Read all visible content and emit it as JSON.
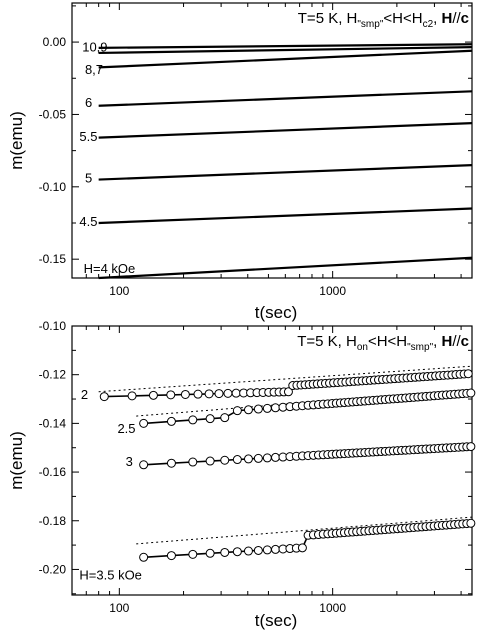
{
  "chart_data": [
    {
      "type": "line",
      "title": "",
      "xlabel": "t(sec)",
      "ylabel": "m(emu)",
      "xscale": "log",
      "xlim": [
        60,
        4500
      ],
      "ylim": [
        -0.163,
        0.027
      ],
      "xticks": [
        {
          "v": 100,
          "label": "100"
        },
        {
          "v": 1000,
          "label": "1000"
        }
      ],
      "yticks": [
        {
          "v": 0.0,
          "label": "0.00"
        },
        {
          "v": -0.05,
          "label": "-0.05"
        },
        {
          "v": -0.1,
          "label": "-0.10"
        },
        {
          "v": -0.15,
          "label": "-0.15"
        }
      ],
      "annotation": {
        "pre": "T=5 K,  H",
        "sub1": "\"smp\"",
        "mid": "<H<H",
        "sub2": "c2",
        "comma": ",",
        "bold": "H",
        "slash": "//",
        "boldc": "c"
      },
      "series": [
        {
          "name": "10,9",
          "x": [
            80,
            4500
          ],
          "y": [
            -0.004,
            -0.0015
          ]
        },
        {
          "name": "10,9",
          "x": [
            80,
            4500
          ],
          "y": [
            -0.0075,
            -0.0035
          ]
        },
        {
          "name": "8,7",
          "x": [
            80,
            4500
          ],
          "y": [
            -0.0175,
            -0.006
          ]
        },
        {
          "name": "6",
          "x": [
            80,
            4500
          ],
          "y": [
            -0.044,
            -0.034
          ]
        },
        {
          "name": "5.5",
          "x": [
            80,
            4500
          ],
          "y": [
            -0.066,
            -0.056
          ]
        },
        {
          "name": "5",
          "x": [
            80,
            4500
          ],
          "y": [
            -0.095,
            -0.085
          ]
        },
        {
          "name": "4.5",
          "x": [
            80,
            4500
          ],
          "y": [
            -0.125,
            -0.115
          ]
        },
        {
          "name": "H=4 kOe",
          "x": [
            80,
            4500
          ],
          "y": [
            -0.163,
            -0.149
          ]
        }
      ],
      "labels": [
        {
          "text": "10,9",
          "x": 67,
          "y": -0.003
        },
        {
          "text": "8,7",
          "x": 69,
          "y": -0.0185
        },
        {
          "text": "6",
          "x": 69,
          "y": -0.0415
        },
        {
          "text": "5.5",
          "x": 65,
          "y": -0.065
        },
        {
          "text": "5",
          "x": 69,
          "y": -0.0935
        },
        {
          "text": "4.5",
          "x": 65,
          "y": -0.1235
        },
        {
          "text": "H=4 kOe",
          "x": 68,
          "y": -0.156
        }
      ]
    },
    {
      "type": "scatter",
      "title": "",
      "xlabel": "t(sec)",
      "ylabel": "m(emu)",
      "xscale": "log",
      "xlim": [
        60,
        4500
      ],
      "ylim": [
        -0.2105,
        -0.1
      ],
      "xticks": [
        {
          "v": 100,
          "label": "100"
        },
        {
          "v": 1000,
          "label": "1000"
        }
      ],
      "yticks": [
        {
          "v": -0.1,
          "label": "-0.10"
        },
        {
          "v": -0.12,
          "label": "-0.12"
        },
        {
          "v": -0.14,
          "label": "-0.14"
        },
        {
          "v": -0.16,
          "label": "-0.16"
        },
        {
          "v": -0.18,
          "label": "-0.18"
        },
        {
          "v": -0.2,
          "label": "-0.20"
        }
      ],
      "annotation": {
        "pre": "T=5 K,  H",
        "sub1": "on",
        "mid": "<H<H",
        "sub2": "\"smp\"",
        "comma": ",",
        "bold": "H",
        "slash": "//",
        "boldc": "c"
      },
      "series": [
        {
          "name": "2",
          "x0": 85,
          "y0": -0.129,
          "x_jump": 640,
          "y_pre_end": -0.127,
          "y_jump": -0.1245,
          "x_end": 4500,
          "y_end": -0.1195,
          "fit": {
            "x": [
              80,
              4500
            ],
            "y": [
              -0.127,
              -0.1165
            ]
          }
        },
        {
          "name": "2.5",
          "x0": 130,
          "y0": -0.14,
          "x_jump": 330,
          "y_pre_end": -0.1375,
          "y_jump": -0.135,
          "x_end": 4500,
          "y_end": -0.1275,
          "fit": {
            "x": [
              120,
              4500
            ],
            "y": [
              -0.137,
              -0.126
            ]
          }
        },
        {
          "name": "3",
          "x0": 130,
          "y0": -0.157,
          "x_jump": null,
          "y_pre_end": null,
          "y_jump": null,
          "x_end": 4500,
          "y_end": -0.1495,
          "fit": null
        },
        {
          "name": "H=3.5 kOe",
          "x0": 130,
          "y0": -0.195,
          "x_jump": 760,
          "y_pre_end": -0.191,
          "y_jump": -0.186,
          "x_end": 4500,
          "y_end": -0.181,
          "fit": {
            "x": [
              120,
              4500
            ],
            "y": [
              -0.1895,
              -0.1785
            ]
          }
        }
      ],
      "labels": [
        {
          "text": "2",
          "x": 66,
          "y": -0.128
        },
        {
          "text": "2.5",
          "x": 98,
          "y": -0.142
        },
        {
          "text": "3",
          "x": 107,
          "y": -0.1555
        },
        {
          "text": "H=3.5 kOe",
          "x": 65,
          "y": -0.202
        }
      ]
    }
  ]
}
